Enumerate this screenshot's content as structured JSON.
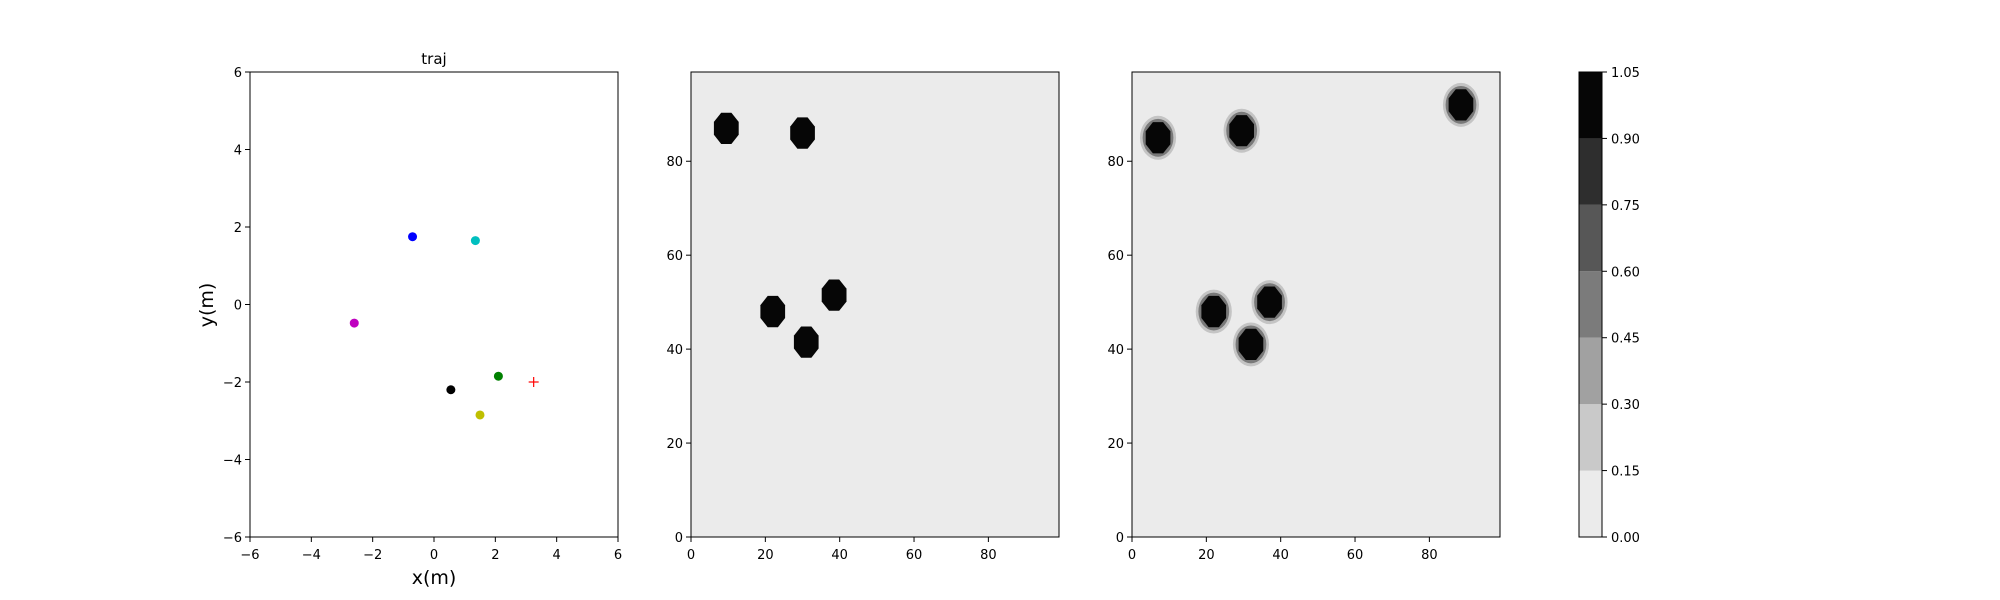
{
  "chart_data": [
    {
      "type": "scatter",
      "title": "traj",
      "xlabel": "x(m)",
      "ylabel": "y(m)",
      "xlim": [
        -6,
        6
      ],
      "ylim": [
        -6,
        6
      ],
      "xticks": [
        "−6",
        "−4",
        "−2",
        "0",
        "2",
        "4",
        "6"
      ],
      "yticks": [
        "−6",
        "−4",
        "−2",
        "0",
        "2",
        "4",
        "6"
      ],
      "points": [
        {
          "x": -0.7,
          "y": 1.75,
          "color": "#0000ff",
          "marker": "dot"
        },
        {
          "x": 1.35,
          "y": 1.65,
          "color": "#00bfbf",
          "marker": "dot"
        },
        {
          "x": -2.6,
          "y": -0.48,
          "color": "#bf00bf",
          "marker": "dot"
        },
        {
          "x": 0.55,
          "y": -2.2,
          "color": "#000000",
          "marker": "dot"
        },
        {
          "x": 2.1,
          "y": -1.85,
          "color": "#008000",
          "marker": "dot"
        },
        {
          "x": 1.5,
          "y": -2.85,
          "color": "#bfbf00",
          "marker": "dot"
        },
        {
          "x": 3.25,
          "y": -2.0,
          "color": "#ff0000",
          "marker": "plus"
        }
      ]
    },
    {
      "type": "heatmap",
      "xlim": [
        0,
        99
      ],
      "ylim": [
        0,
        99
      ],
      "xticks": [
        "0",
        "20",
        "40",
        "60",
        "80"
      ],
      "yticks": [
        "0",
        "20",
        "40",
        "60",
        "80"
      ],
      "background_value": 0.0,
      "blobs": [
        {
          "x": 9.5,
          "y": 87,
          "value": 1.0,
          "fuzz": false
        },
        {
          "x": 30,
          "y": 86,
          "value": 1.0,
          "fuzz": false
        },
        {
          "x": 22,
          "y": 48,
          "value": 1.0,
          "fuzz": false
        },
        {
          "x": 38.5,
          "y": 51.5,
          "value": 1.0,
          "fuzz": false
        },
        {
          "x": 31,
          "y": 41.5,
          "value": 1.0,
          "fuzz": false
        }
      ]
    },
    {
      "type": "heatmap",
      "xlim": [
        0,
        99
      ],
      "ylim": [
        0,
        99
      ],
      "xticks": [
        "0",
        "20",
        "40",
        "60",
        "80"
      ],
      "yticks": [
        "0",
        "20",
        "40",
        "60",
        "80"
      ],
      "background_value": 0.0,
      "blobs": [
        {
          "x": 7,
          "y": 85,
          "value": 1.0,
          "fuzz": true
        },
        {
          "x": 29.5,
          "y": 86.5,
          "value": 1.0,
          "fuzz": true
        },
        {
          "x": 88.5,
          "y": 92,
          "value": 1.0,
          "fuzz": true
        },
        {
          "x": 22,
          "y": 48,
          "value": 1.0,
          "fuzz": true
        },
        {
          "x": 37,
          "y": 50,
          "value": 1.0,
          "fuzz": true
        },
        {
          "x": 32,
          "y": 41,
          "value": 1.0,
          "fuzz": true
        }
      ]
    },
    {
      "type": "colorbar",
      "levels": [
        0.0,
        0.15,
        0.3,
        0.45,
        0.6,
        0.75,
        0.9,
        1.05
      ],
      "tick_labels": [
        "0.00",
        "0.15",
        "0.30",
        "0.45",
        "0.60",
        "0.75",
        "0.90",
        "1.05"
      ],
      "colors": [
        "#ebebeb",
        "#c9c9c9",
        "#a1a1a1",
        "#7b7b7b",
        "#575757",
        "#2e2e2e",
        "#060606"
      ]
    }
  ]
}
